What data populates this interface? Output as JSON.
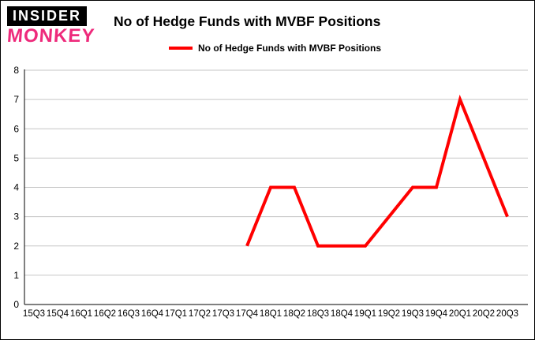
{
  "logo": {
    "line1": "INSIDER",
    "line2": "MONKEY",
    "pink": "#ee2a7b"
  },
  "chart_data": {
    "type": "line",
    "title": "No of Hedge Funds with MVBF Positions",
    "legend": "No of Hedge Funds with MVBF Positions",
    "categories": [
      "15Q3",
      "15Q4",
      "16Q1",
      "16Q2",
      "16Q3",
      "16Q4",
      "17Q1",
      "17Q2",
      "17Q3",
      "17Q4",
      "18Q1",
      "18Q2",
      "18Q3",
      "18Q4",
      "19Q1",
      "19Q2",
      "19Q3",
      "19Q4",
      "20Q1",
      "20Q2",
      "20Q3"
    ],
    "values": [
      null,
      null,
      null,
      null,
      null,
      null,
      null,
      null,
      null,
      2,
      4,
      4,
      2,
      2,
      2,
      3,
      4,
      4,
      7,
      5,
      3
    ],
    "ylim": [
      0,
      8
    ],
    "yticks": [
      0,
      1,
      2,
      3,
      4,
      5,
      6,
      7,
      8
    ],
    "grid": true,
    "legend_position": "top",
    "line_color": "#ff0000",
    "grid_color": "#c6c6c6",
    "axis_color": "#000000"
  }
}
